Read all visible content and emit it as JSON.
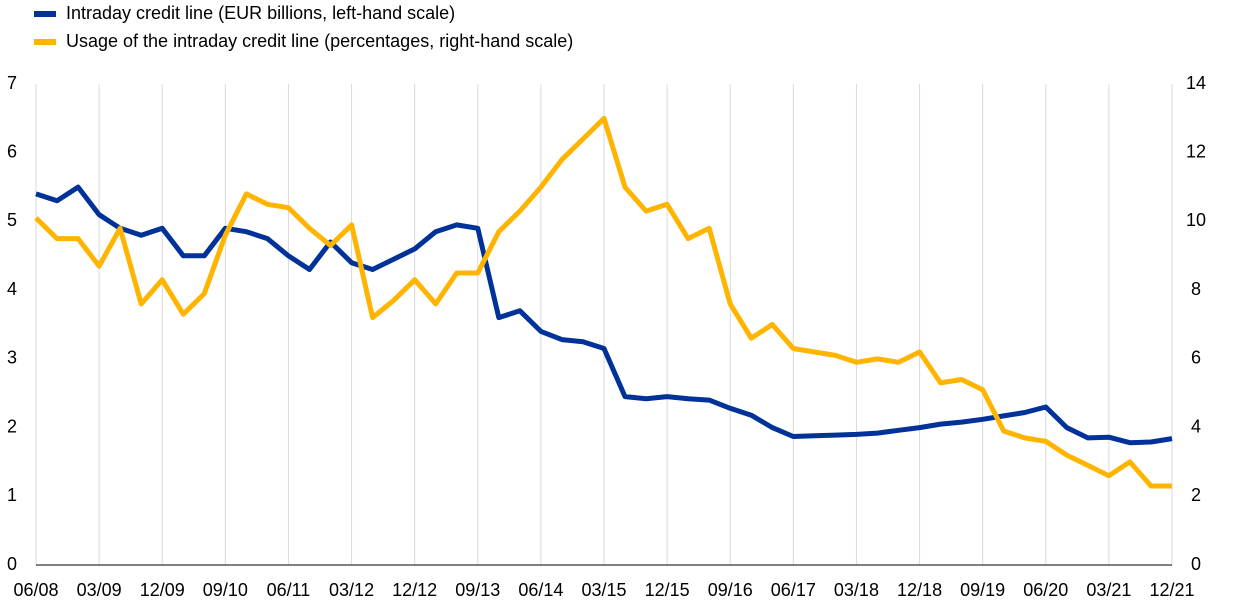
{
  "chart_data": {
    "type": "line",
    "categories": [
      "06/08",
      null,
      null,
      "03/09",
      null,
      null,
      "12/09",
      null,
      null,
      "09/10",
      null,
      null,
      "06/11",
      null,
      null,
      "03/12",
      null,
      null,
      "12/12",
      null,
      null,
      "09/13",
      null,
      null,
      "06/14",
      null,
      null,
      "03/15",
      null,
      null,
      "12/15",
      null,
      null,
      "09/16",
      null,
      null,
      "06/17",
      null,
      null,
      "03/18",
      null,
      null,
      "12/18",
      null,
      null,
      "09/19",
      null,
      null,
      "06/20",
      null,
      null,
      "03/21",
      null,
      null,
      "12/21"
    ],
    "series": [
      {
        "name": "Intraday credit line (EUR billions, left-hand scale)",
        "color": "#003299",
        "axis": "y",
        "values": [
          5.4,
          5.3,
          5.5,
          5.1,
          4.9,
          4.8,
          4.9,
          4.5,
          4.5,
          4.9,
          4.85,
          4.75,
          4.5,
          4.3,
          4.7,
          4.4,
          4.3,
          4.45,
          4.6,
          4.85,
          4.95,
          4.9,
          3.6,
          3.7,
          3.4,
          3.28,
          3.25,
          3.15,
          2.45,
          2.42,
          2.45,
          2.42,
          2.4,
          2.28,
          2.18,
          2.0,
          1.87,
          1.88,
          1.89,
          1.9,
          1.92,
          1.96,
          2.0,
          2.05,
          2.08,
          2.12,
          2.17,
          2.22,
          2.3,
          2.0,
          1.85,
          1.86,
          1.78,
          1.79,
          1.84
        ]
      },
      {
        "name": "Usage of the intraday credit line (percentages, right-hand scale)",
        "color": "#ffb400",
        "axis": "y2",
        "values": [
          10.1,
          9.5,
          9.5,
          8.7,
          9.8,
          7.6,
          8.3,
          7.3,
          7.9,
          9.6,
          10.8,
          10.5,
          10.4,
          9.8,
          9.3,
          9.9,
          7.2,
          7.7,
          8.3,
          7.6,
          8.5,
          8.5,
          9.7,
          10.3,
          11.0,
          11.8,
          12.4,
          13.0,
          11.0,
          10.3,
          10.5,
          9.5,
          9.8,
          7.6,
          6.6,
          7.0,
          6.3,
          6.2,
          6.1,
          5.9,
          6.0,
          5.9,
          6.2,
          5.3,
          5.4,
          5.1,
          3.9,
          3.7,
          3.6,
          3.2,
          2.9,
          2.6,
          3.0,
          2.3,
          2.3
        ]
      }
    ],
    "ylim": [
      0,
      7
    ],
    "yticks": [
      0,
      1,
      2,
      3,
      4,
      5,
      6,
      7
    ],
    "y2lim": [
      0,
      14
    ],
    "y2ticks": [
      0,
      2,
      4,
      6,
      8,
      10,
      12,
      14
    ],
    "grid": true,
    "legend": "top-left"
  }
}
